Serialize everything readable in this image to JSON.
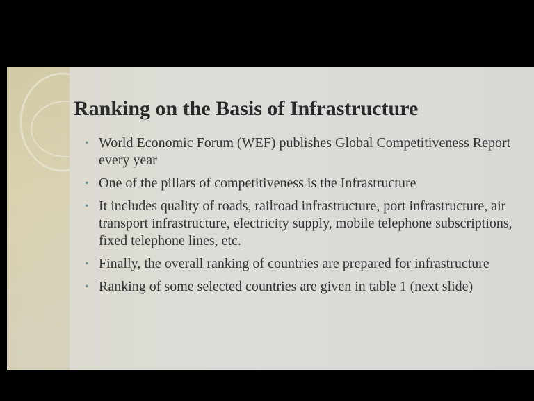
{
  "title": "Ranking on the Basis of Infrastructure",
  "bullets": [
    "World Economic Forum (WEF)  publishes Global Competitiveness Report every year",
    "One of the pillars of competitiveness is the Infrastructure",
    "It includes quality of roads, railroad infrastructure, port infrastructure, air transport infrastructure, electricity supply, mobile telephone subscriptions, fixed telephone lines, etc.",
    "Finally, the overall ranking of countries are prepared for infrastructure",
    "Ranking of some selected countries are given in table 1 (next slide)"
  ]
}
